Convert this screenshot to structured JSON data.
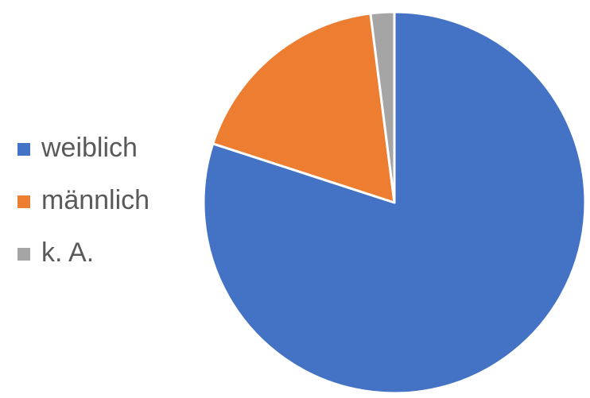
{
  "chart_data": {
    "type": "pie",
    "categories": [
      "weiblich",
      "männlich",
      "k. A."
    ],
    "values": [
      80,
      18,
      2
    ],
    "colors": [
      "#4472c4",
      "#ed7d31",
      "#a5a5a5"
    ],
    "legend": "left"
  }
}
